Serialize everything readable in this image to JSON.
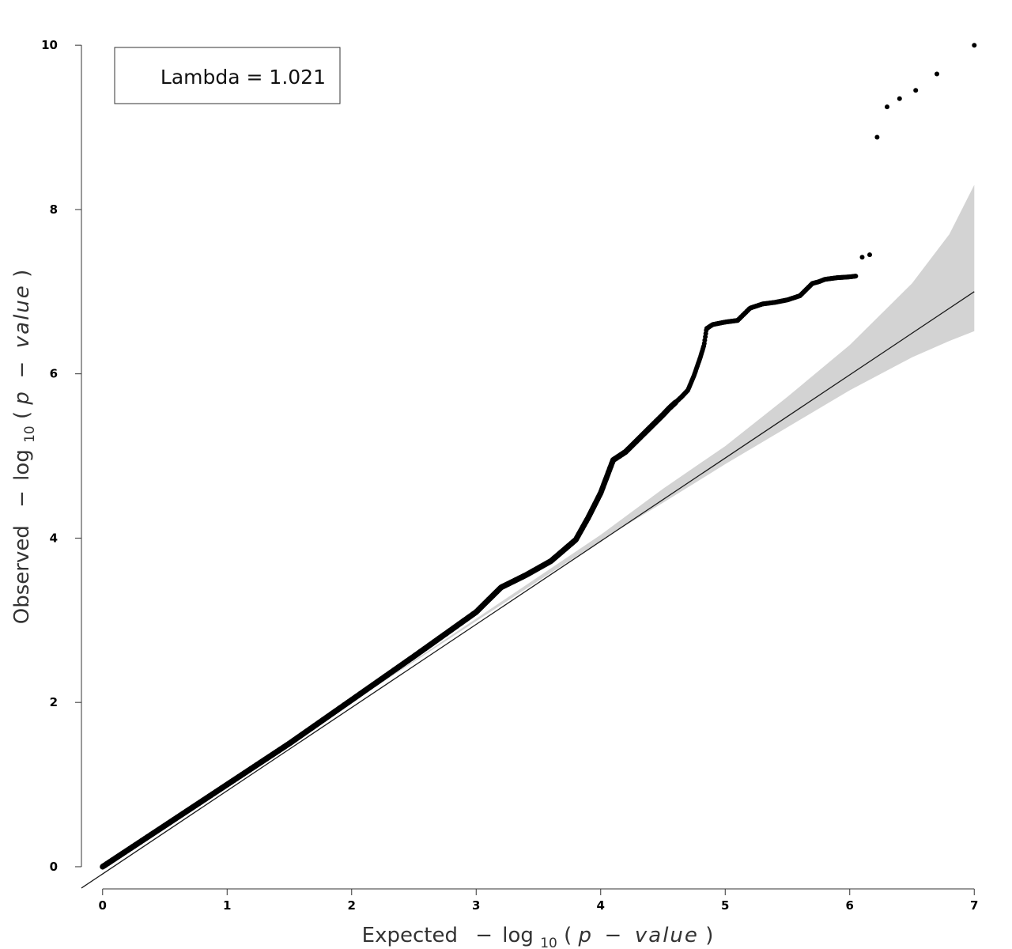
{
  "chart_data": {
    "type": "scatter",
    "title": "",
    "xlabel": {
      "prefix": "Expected",
      "minus": "−",
      "log": "log",
      "base": "10",
      "open": "(",
      "p": "p",
      "dash": " − ",
      "value": "value",
      "close": ")"
    },
    "ylabel": {
      "prefix": "Observed",
      "minus": "−",
      "log": "log",
      "base": "10",
      "open": "(",
      "p": "p",
      "dash": " − ",
      "value": "value",
      "close": ")"
    },
    "legend": {
      "text": "Lambda = 1.021",
      "position": "top-left"
    },
    "xlim": [
      -0.17,
      7.1
    ],
    "ylim": [
      -0.27,
      10.3
    ],
    "xticks": [
      0,
      1,
      2,
      3,
      4,
      5,
      6,
      7
    ],
    "yticks": [
      0,
      2,
      4,
      6,
      8,
      10
    ],
    "grid": false,
    "reference_line": {
      "x": [
        -0.17,
        7.0
      ],
      "y": [
        -0.26,
        7.0
      ]
    },
    "confidence_band": {
      "x": [
        0,
        1,
        2,
        3,
        4,
        4.5,
        5,
        5.5,
        6,
        6.5,
        6.8,
        7.0
      ],
      "upper": [
        0,
        1.0,
        2.0,
        3.02,
        4.04,
        4.6,
        5.12,
        5.72,
        6.35,
        7.1,
        7.7,
        8.3
      ],
      "lower": [
        0,
        1.0,
        2.0,
        2.99,
        3.97,
        4.43,
        4.9,
        5.35,
        5.8,
        6.2,
        6.4,
        6.52
      ]
    },
    "observed_curve": {
      "x": [
        0,
        0.5,
        1.0,
        1.5,
        2.0,
        2.5,
        3.0,
        3.2,
        3.4,
        3.6,
        3.8,
        3.9,
        4.0,
        4.1,
        4.2,
        4.3,
        4.4,
        4.5,
        4.55,
        4.6,
        4.65,
        4.7,
        4.75,
        4.8,
        4.83,
        4.85,
        4.9,
        5.0,
        5.1,
        5.2,
        5.3,
        5.4,
        5.5,
        5.6,
        5.7,
        5.75,
        5.8,
        5.9,
        6.0,
        6.05
      ],
      "y": [
        0,
        0.5,
        1.0,
        1.5,
        2.03,
        2.56,
        3.1,
        3.4,
        3.55,
        3.72,
        3.98,
        4.25,
        4.55,
        4.95,
        5.05,
        5.2,
        5.35,
        5.5,
        5.58,
        5.65,
        5.72,
        5.8,
        5.98,
        6.2,
        6.35,
        6.55,
        6.6,
        6.63,
        6.65,
        6.8,
        6.85,
        6.87,
        6.9,
        6.95,
        7.1,
        7.12,
        7.15,
        7.17,
        7.18,
        7.19
      ]
    },
    "points": [
      {
        "x": 6.1,
        "y": 7.42
      },
      {
        "x": 6.16,
        "y": 7.45
      },
      {
        "x": 6.22,
        "y": 8.88
      },
      {
        "x": 6.3,
        "y": 9.25
      },
      {
        "x": 6.4,
        "y": 9.35
      },
      {
        "x": 6.53,
        "y": 9.45
      },
      {
        "x": 6.7,
        "y": 9.65
      },
      {
        "x": 7.0,
        "y": 10.0
      }
    ],
    "colors": {
      "band": "#d3d3d3",
      "line": "#1a1a1a",
      "points": "#000000",
      "axis": "#333333"
    }
  }
}
